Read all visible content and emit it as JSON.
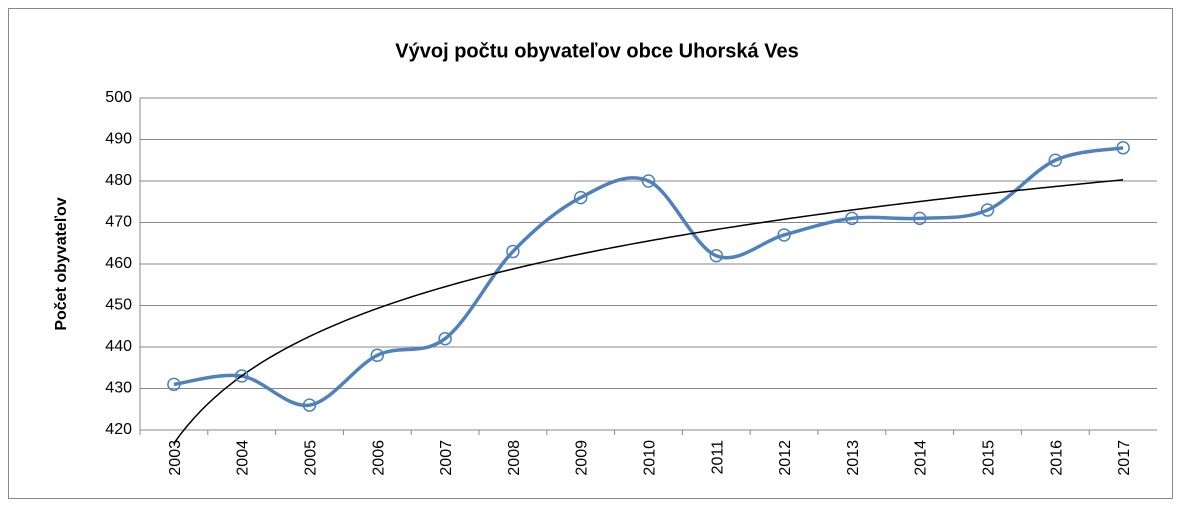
{
  "chart_data": {
    "type": "line",
    "title": "Vývoj počtu obyvateľov obce Uhorská Ves",
    "ylabel": "Počet obyvateľov",
    "categories": [
      "2003",
      "2004",
      "2005",
      "2006",
      "2007",
      "2008",
      "2009",
      "2010",
      "2011",
      "2012",
      "2013",
      "2014",
      "2015",
      "2016",
      "2017"
    ],
    "values": [
      431,
      433,
      426,
      438,
      442,
      463,
      476,
      480,
      462,
      467,
      471,
      471,
      473,
      485,
      488
    ],
    "color": "#4f81bd",
    "smooth": true,
    "markers": "hollow-circle",
    "trendline": "logarithmic",
    "trendline_color": "#000000",
    "ylim": [
      420,
      500
    ],
    "yticks": [
      420,
      430,
      440,
      450,
      460,
      470,
      480,
      490,
      500
    ],
    "grid": true
  }
}
